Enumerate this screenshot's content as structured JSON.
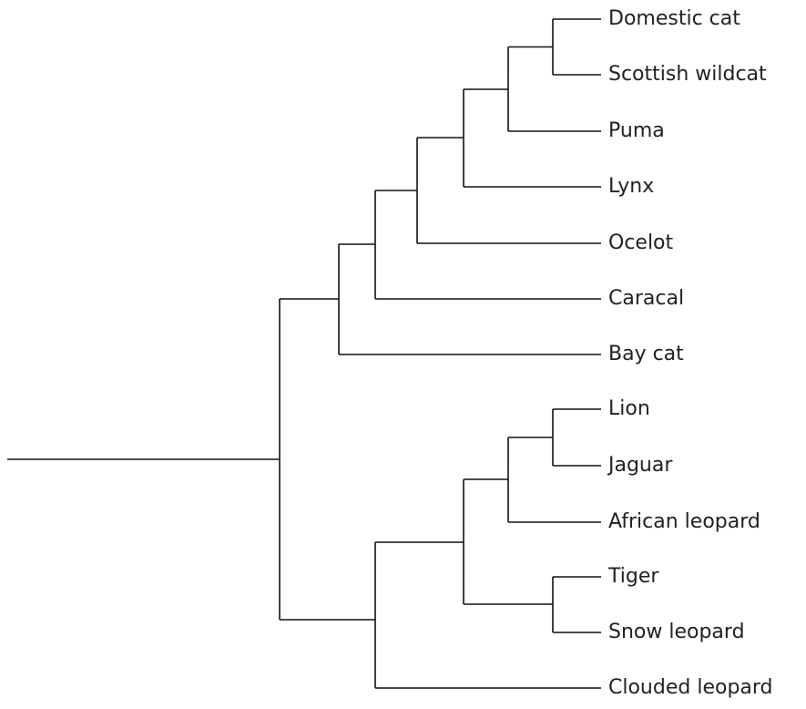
{
  "leaves": [
    "Domestic cat",
    "Scottish wildcat",
    "Puma",
    "Lynx",
    "Ocelot",
    "Caracal",
    "Bay cat",
    "Lion",
    "Jaguar",
    "African leopard",
    "Tiger",
    "Snow leopard",
    "Clouded leopard"
  ]
}
